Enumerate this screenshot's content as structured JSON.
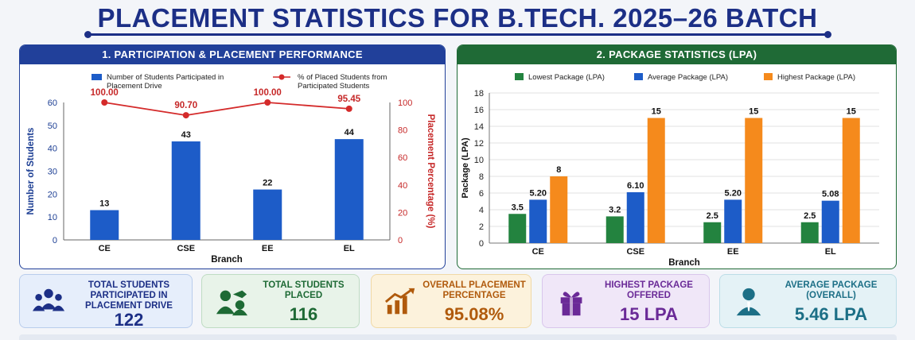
{
  "page_title": "PLACEMENT STATISTICS FOR  B.TECH. 2025–26 BATCH",
  "panels": {
    "p1_title": "1. PARTICIPATION & PLACEMENT PERFORMANCE",
    "p2_title": "2. PACKAGE STATISTICS (LPA)"
  },
  "chart_data": [
    {
      "type": "bar",
      "categories": [
        "CE",
        "CSE",
        "EE",
        "EL"
      ],
      "xlabel": "Branch",
      "ylabel": "Number of Students",
      "ylim": [
        0,
        60
      ],
      "yticks": [
        "0",
        "10",
        "20",
        "30",
        "40",
        "50",
        "60"
      ],
      "y2label": "Placement Percentage (%)",
      "y2lim": [
        0,
        100
      ],
      "y2ticks": [
        "0",
        "20",
        "40",
        "60",
        "80",
        "100"
      ],
      "legend_position": "top",
      "series": [
        {
          "name": "Number of Students Participated in Placement Drive",
          "kind": "bar",
          "axis": "left",
          "color": "#1d5cc8",
          "values": [
            13,
            43,
            22,
            44
          ],
          "labels": [
            "13",
            "43",
            "22",
            "44"
          ]
        },
        {
          "name": "% of Placed Students from Participated Students",
          "kind": "line",
          "axis": "right",
          "color": "#d42a2a",
          "values": [
            100.0,
            90.7,
            100.0,
            95.45
          ],
          "labels": [
            "100.00",
            "90.70",
            "100.00",
            "95.45"
          ]
        }
      ]
    },
    {
      "type": "bar",
      "categories": [
        "CE",
        "CSE",
        "EE",
        "EL"
      ],
      "xlabel": "Branch",
      "ylabel": "Package (LPA)",
      "ylim": [
        0,
        18
      ],
      "yticks": [
        "0",
        "2",
        "4",
        "6",
        "8",
        "10",
        "12",
        "14",
        "16",
        "18"
      ],
      "legend_position": "top",
      "series": [
        {
          "name": "Lowest Package (LPA)",
          "color": "#23833f",
          "values": [
            3.5,
            3.2,
            2.5,
            2.5
          ],
          "labels": [
            "3.5",
            "3.2",
            "2.5",
            "2.5"
          ]
        },
        {
          "name": "Average Package (LPA)",
          "color": "#1d5cc8",
          "values": [
            5.2,
            6.1,
            5.2,
            5.08
          ],
          "labels": [
            "5.20",
            "6.10",
            "5.20",
            "5.08"
          ]
        },
        {
          "name": "Highest Package (LPA)",
          "color": "#f58a1c",
          "values": [
            8,
            15,
            15,
            15
          ],
          "labels": [
            "8",
            "15",
            "15",
            "15"
          ]
        }
      ]
    }
  ],
  "cards": [
    {
      "label": "TOTAL STUDENTS PARTICIPATED IN PLACEMENT DRIVE",
      "value": "122",
      "icon": "people-icon",
      "bg": "#e6eefb",
      "border": "#b9cdec",
      "color": "#1c2f86"
    },
    {
      "label": "TOTAL STUDENTS PLACED",
      "value": "116",
      "icon": "graduate-icon",
      "bg": "#e8f3e9",
      "border": "#bfdcc3",
      "color": "#1e6a35"
    },
    {
      "label": "OVERALL PLACEMENT PERCENTAGE",
      "value": "95.08%",
      "icon": "growth-chart-icon",
      "bg": "#fcf2dc",
      "border": "#f0d9a6",
      "color": "#b05a0c"
    },
    {
      "label": "HIGHEST PACKAGE OFFERED",
      "value": "15 LPA",
      "icon": "gift-icon",
      "bg": "#f0e7f8",
      "border": "#d9c6ec",
      "color": "#6a2a97"
    },
    {
      "label": "AVERAGE PACKAGE (OVERALL)",
      "value": "5.46 LPA",
      "icon": "professional-icon",
      "bg": "#e4f2f6",
      "border": "#bcdde7",
      "color": "#1c6f86"
    }
  ]
}
